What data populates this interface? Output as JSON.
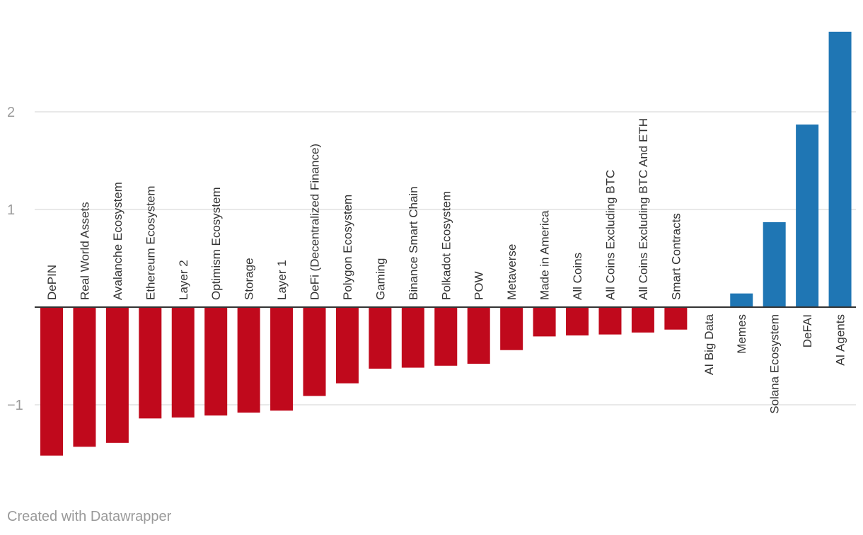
{
  "chart_data": {
    "type": "bar",
    "title": "",
    "xlabel": "",
    "ylabel": "",
    "ylim": [
      -1.85,
      2.95
    ],
    "yticks": [
      {
        "value": -1,
        "label": "−1"
      },
      {
        "value": 1,
        "label": "1"
      },
      {
        "value": 2,
        "label": "2"
      }
    ],
    "grid": true,
    "legend": "none",
    "colors": {
      "negative": "#c0091c",
      "positive": "#1f76b4",
      "grid": "#e2e2e2",
      "baseline": "#333333"
    },
    "categories": [
      "DePIN",
      "Real World Assets",
      "Avalanche Ecosystem",
      "Ethereum Ecosystem",
      "Layer 2",
      "Optimism Ecosystem",
      "Storage",
      "Layer 1",
      "DeFi (Decentralized Finance)",
      "Polygon Ecosystem",
      "Gaming",
      "Binance Smart Chain",
      "Polkadot Ecosystem",
      "POW",
      "Metaverse",
      "Made in America",
      "All Coins",
      "All Coins Excluding BTC",
      "All Coins Excluding BTC And ETH",
      "Smart Contracts",
      "AI Big Data",
      "Memes",
      "Solana Ecosystem",
      "DeFAI",
      "AI Agents"
    ],
    "values": [
      -1.52,
      -1.43,
      -1.39,
      -1.14,
      -1.13,
      -1.11,
      -1.08,
      -1.06,
      -0.91,
      -0.78,
      -0.63,
      -0.62,
      -0.6,
      -0.58,
      -0.44,
      -0.3,
      -0.29,
      -0.28,
      -0.26,
      -0.23,
      0.0,
      0.14,
      0.87,
      1.87,
      2.82
    ]
  },
  "footer": {
    "credit": "Created with Datawrapper"
  }
}
